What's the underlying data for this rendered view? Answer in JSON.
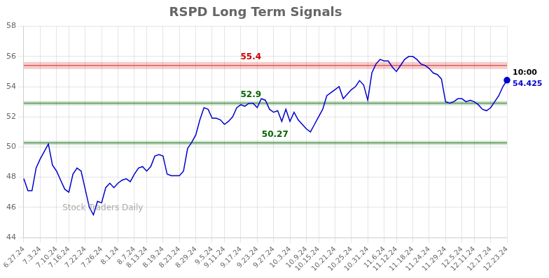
{
  "chart_data": {
    "type": "line",
    "title": "RSPD Long Term Signals",
    "categories": [
      "6.27.24",
      null,
      null,
      null,
      "7.3.24",
      null,
      null,
      null,
      "7.10.24",
      null,
      null,
      "7.16.24",
      null,
      null,
      null,
      "7.22.24",
      null,
      null,
      null,
      "7.26.24",
      null,
      null,
      null,
      "8.1.24",
      null,
      null,
      null,
      "8.7.24",
      null,
      null,
      "8.13.24",
      null,
      null,
      null,
      "8.19.24",
      null,
      null,
      null,
      "8.23.24",
      null,
      null,
      null,
      "8.29.24",
      null,
      null,
      null,
      "9.5.24",
      null,
      null,
      "9.11.24",
      null,
      null,
      null,
      "9.17.24",
      null,
      null,
      null,
      "9.23.24",
      null,
      null,
      null,
      "9.27.24",
      null,
      null,
      null,
      "10.3.24",
      null,
      null,
      null,
      "10.9.24",
      null,
      null,
      "10.15.24",
      null,
      null,
      null,
      "10.21.24",
      null,
      null,
      null,
      "10.25.24",
      null,
      null,
      null,
      "10.31.24",
      null,
      null,
      null,
      "11.6.24",
      null,
      null,
      "11.12.24",
      null,
      null,
      null,
      "11.18.24",
      null,
      null,
      null,
      "11.24.24",
      null,
      null,
      null,
      "11.29.24",
      null,
      null,
      null,
      "12.5.24",
      null,
      null,
      "12.11.24",
      null,
      null,
      null,
      "12.17.24",
      null,
      null,
      null,
      "12.23.24"
    ],
    "values": [
      47.9,
      47.1,
      47.1,
      48.6,
      49.2,
      49.7,
      50.2,
      48.8,
      48.4,
      47.8,
      47.2,
      47.0,
      48.2,
      48.6,
      48.4,
      47.2,
      46.0,
      45.5,
      46.4,
      46.3,
      47.3,
      47.6,
      47.3,
      47.6,
      47.8,
      47.9,
      47.7,
      48.2,
      48.6,
      48.7,
      48.4,
      48.7,
      49.4,
      49.5,
      49.4,
      48.2,
      48.1,
      48.1,
      48.1,
      48.4,
      49.9,
      50.3,
      50.8,
      51.8,
      52.6,
      52.5,
      51.9,
      51.9,
      51.8,
      51.5,
      51.7,
      52.0,
      52.6,
      52.8,
      52.7,
      52.9,
      52.9,
      52.6,
      53.2,
      53.1,
      52.5,
      52.3,
      52.4,
      51.7,
      52.5,
      51.7,
      52.3,
      51.8,
      51.5,
      51.2,
      51.0,
      51.5,
      52.0,
      52.5,
      53.4,
      53.6,
      53.8,
      54.0,
      53.2,
      53.5,
      53.8,
      54.0,
      54.4,
      54.1,
      53.1,
      54.9,
      55.5,
      55.8,
      55.7,
      55.7,
      55.3,
      55.0,
      55.4,
      55.8,
      56.0,
      56.0,
      55.8,
      55.5,
      55.4,
      55.2,
      54.9,
      54.8,
      54.5,
      53.0,
      52.9,
      53.0,
      53.2,
      53.2,
      53.0,
      53.1,
      53.0,
      52.8,
      52.5,
      52.4,
      52.6,
      53.0,
      53.4,
      54.0,
      54.425
    ],
    "color": "#0000cc",
    "ylim": [
      44,
      58
    ],
    "yticks": [
      44,
      46,
      48,
      50,
      52,
      54,
      56,
      58
    ],
    "grid": true,
    "hlines": [
      {
        "value": 55.4,
        "color": "#cc0000"
      },
      {
        "value": 52.9,
        "color": "#006600"
      },
      {
        "value": 50.27,
        "color": "#006600"
      }
    ],
    "end_label": "10:00",
    "watermark": "Stock Traders Daily"
  }
}
